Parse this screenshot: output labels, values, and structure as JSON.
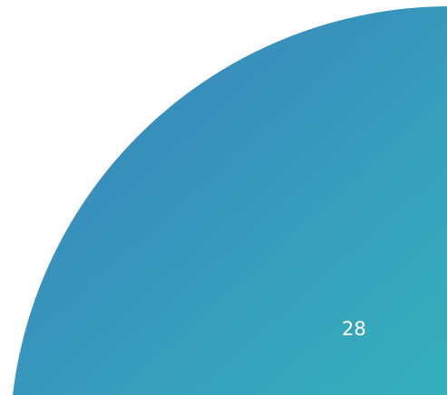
{
  "slide": {
    "page_number": "28",
    "shape_name": "quarter-circle",
    "colors": {
      "background": "#ffffff",
      "gradient_start": "#3a7fbd",
      "gradient_end": "#35b0bb",
      "text": "#ffffff"
    }
  }
}
